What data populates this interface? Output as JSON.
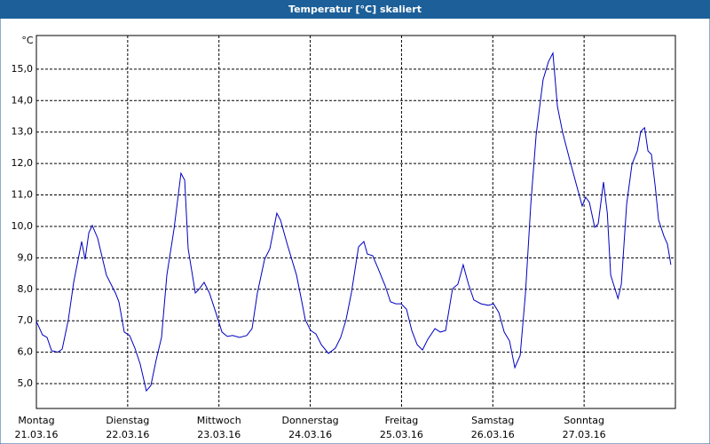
{
  "chart_data": {
    "type": "line",
    "title": "Temperatur [°C] skaliert",
    "y_label": "°C",
    "x": [
      0,
      1.6,
      2.8,
      4.0,
      5.6,
      6.8,
      8.4,
      9.8,
      11.9,
      12.8,
      13.8,
      14.7,
      16.1,
      18.4,
      20.8,
      21.7,
      23.1,
      24.5,
      25.9,
      27.3,
      28.9,
      30.1,
      31.5,
      32.9,
      34.3,
      36.2,
      38.0,
      39.0,
      39.9,
      41.8,
      42.7,
      44.1,
      45.5,
      47.4,
      48.8,
      50.2,
      51.6,
      53.4,
      55.3,
      56.7,
      58.1,
      60.0,
      61.4,
      63.2,
      64.2,
      66.0,
      68.4,
      69.8,
      70.7,
      72.1,
      73.5,
      74.9,
      76.8,
      78.6,
      80.0,
      81.4,
      82.8,
      84.7,
      86.1,
      87.0,
      88.4,
      89.8,
      91.7,
      93.1,
      94.5,
      95.9,
      97.3,
      98.7,
      100.1,
      101.5,
      102.9,
      104.8,
      106.2,
      107.6,
      109.4,
      110.8,
      112.2,
      113.6,
      115.0,
      116.9,
      118.8,
      120.2,
      121.6,
      123.0,
      124.4,
      125.8,
      127.2,
      128.6,
      130.0,
      131.4,
      133.2,
      134.6,
      135.8,
      137.0,
      138.4,
      140.2,
      142.1,
      143.5,
      144.4,
      145.4,
      146.8,
      147.7,
      149.1,
      150.1,
      151.0,
      152.9,
      153.8,
      155.2,
      156.6,
      158.0,
      158.9,
      159.9,
      160.8,
      161.7,
      162.7,
      163.6,
      165.0,
      165.9,
      166.8
    ],
    "series": [
      {
        "color": "#0000c0",
        "values": [
          6.98,
          6.55,
          6.47,
          6.05,
          6.0,
          6.1,
          7.03,
          8.22,
          9.52,
          8.95,
          9.8,
          10.03,
          9.63,
          8.45,
          7.88,
          7.6,
          6.64,
          6.53,
          6.13,
          5.62,
          4.77,
          4.94,
          5.76,
          6.47,
          8.45,
          9.92,
          11.69,
          11.47,
          9.29,
          7.88,
          7.99,
          8.22,
          7.88,
          7.18,
          6.64,
          6.5,
          6.53,
          6.47,
          6.53,
          6.75,
          7.88,
          8.95,
          9.29,
          10.42,
          10.2,
          9.41,
          8.45,
          7.6,
          7.03,
          6.69,
          6.58,
          6.24,
          5.96,
          6.13,
          6.47,
          7.03,
          7.88,
          9.35,
          9.52,
          9.12,
          9.07,
          8.67,
          8.11,
          7.6,
          7.54,
          7.54,
          7.37,
          6.69,
          6.24,
          6.07,
          6.41,
          6.75,
          6.64,
          6.69,
          8.02,
          8.16,
          8.78,
          8.16,
          7.66,
          7.54,
          7.49,
          7.54,
          7.26,
          6.64,
          6.36,
          5.51,
          5.9,
          7.88,
          10.71,
          12.91,
          14.66,
          15.23,
          15.51,
          13.81,
          12.97,
          12.12,
          11.27,
          10.65,
          10.93,
          10.76,
          9.97,
          10.08,
          11.41,
          10.42,
          8.45,
          7.71,
          8.16,
          10.71,
          11.98,
          12.4,
          13.02,
          13.14,
          12.4,
          12.29,
          11.27,
          10.2,
          9.69,
          9.44,
          8.78
        ]
      }
    ],
    "xlim": [
      0,
      168
    ],
    "xticks": [
      {
        "value": 0,
        "label": "Montag"
      },
      {
        "value": 24,
        "label": "Dienstag"
      },
      {
        "value": 48,
        "label": "Mittwoch"
      },
      {
        "value": 72,
        "label": "Donnerstag"
      },
      {
        "value": 96,
        "label": "Freitag"
      },
      {
        "value": 120,
        "label": "Samstag"
      },
      {
        "value": 144,
        "label": "Sonntag"
      }
    ],
    "xtick_dates": [
      "21.03.16",
      "22.03.16",
      "23.03.16",
      "24.03.16",
      "25.03.16",
      "26.03.16",
      "27.03.16"
    ],
    "ylim": [
      4.21,
      16.07
    ],
    "yticks": [
      {
        "value": 5,
        "label": "5,0"
      },
      {
        "value": 6,
        "label": "6,0"
      },
      {
        "value": 7,
        "label": "7,0"
      },
      {
        "value": 8,
        "label": "8,0"
      },
      {
        "value": 9,
        "label": "9,0"
      },
      {
        "value": 10,
        "label": "10,0"
      },
      {
        "value": 11,
        "label": "11,0"
      },
      {
        "value": 12,
        "label": "12,0"
      },
      {
        "value": 13,
        "label": "13,0"
      },
      {
        "value": 14,
        "label": "14,0"
      },
      {
        "value": 15,
        "label": "15,0"
      }
    ],
    "grid": true
  }
}
